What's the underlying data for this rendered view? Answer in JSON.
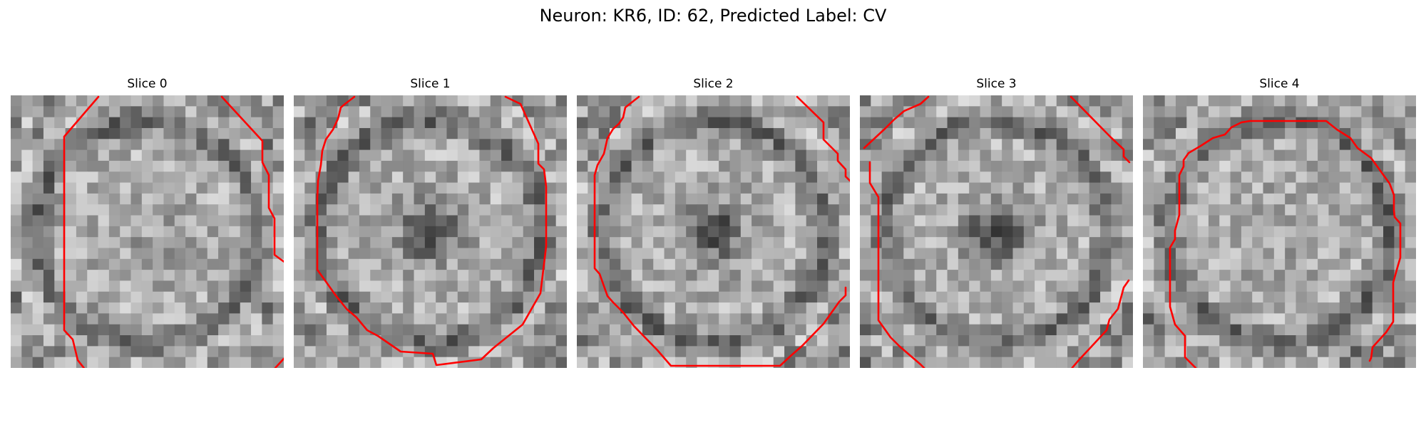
{
  "figure": {
    "title": "Neuron: KR6, ID: 62, Predicted Label: CV"
  },
  "panels": [
    {
      "title": "Slice 0",
      "seed": 11,
      "dark_center": false,
      "boundary_color": "#ff0000"
    },
    {
      "title": "Slice 1",
      "seed": 23,
      "dark_center": true,
      "boundary_color": "#ff0000"
    },
    {
      "title": "Slice 2",
      "seed": 37,
      "dark_center": true,
      "boundary_color": "#ff0000"
    },
    {
      "title": "Slice 3",
      "seed": 41,
      "dark_center": true,
      "boundary_color": "#ff0000"
    },
    {
      "title": "Slice 4",
      "seed": 53,
      "dark_center": false,
      "boundary_color": "#ff0000"
    }
  ]
}
